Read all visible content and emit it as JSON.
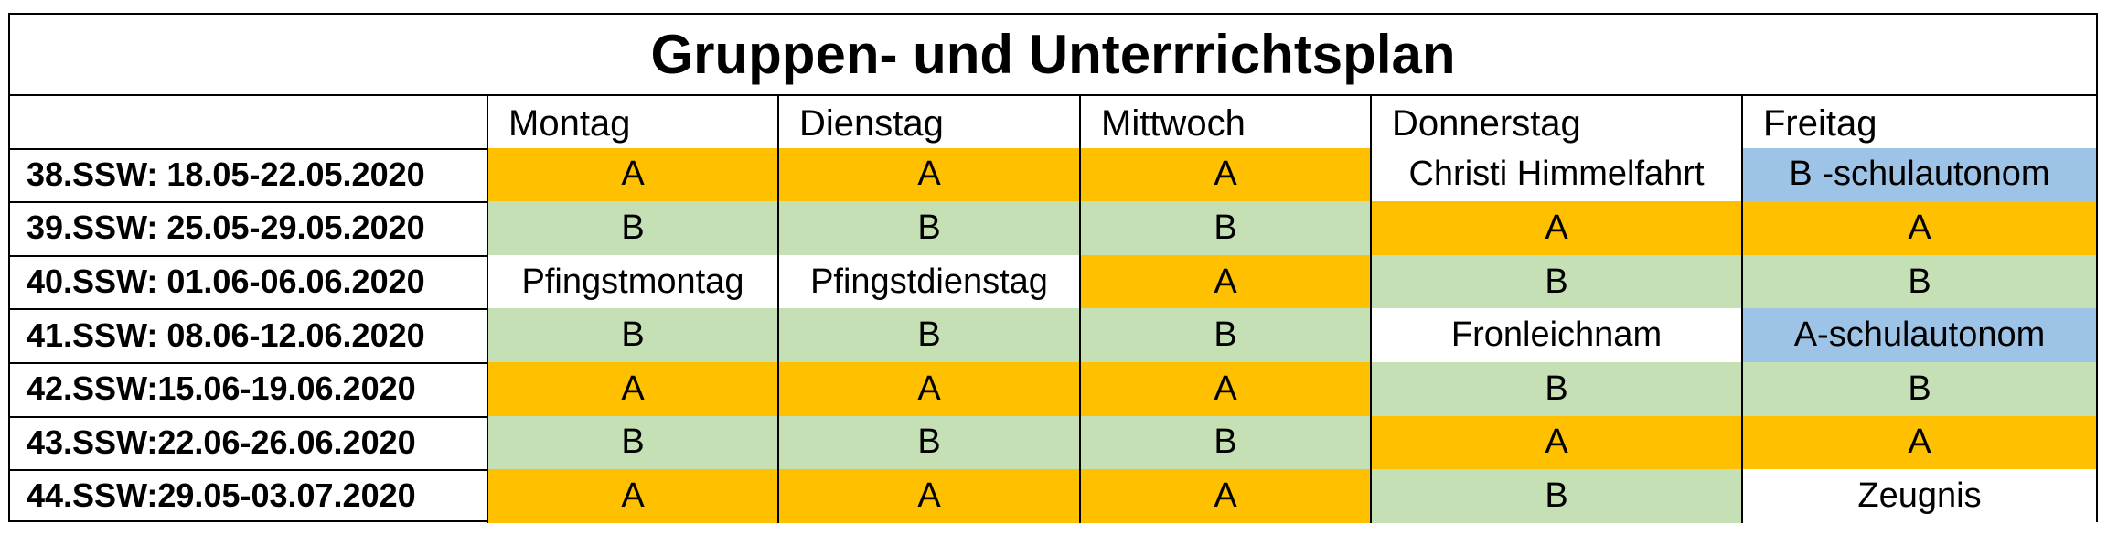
{
  "title": "Gruppen- und Unterrrichtsplan",
  "columns": [
    "",
    "Montag",
    "Dienstag",
    "Mittwoch",
    "Donnerstag",
    "Freitag"
  ],
  "rows": [
    {
      "week": "38.SSW: 18.05-22.05.2020",
      "cells": [
        {
          "text": "A",
          "style": "A"
        },
        {
          "text": "A",
          "style": "A"
        },
        {
          "text": "A",
          "style": "A"
        },
        {
          "text": "Christi Himmelfahrt",
          "style": "white"
        },
        {
          "text": "B -schulautonom",
          "style": "blue"
        }
      ]
    },
    {
      "week": "39.SSW: 25.05-29.05.2020",
      "cells": [
        {
          "text": "B",
          "style": "B"
        },
        {
          "text": "B",
          "style": "B"
        },
        {
          "text": "B",
          "style": "B"
        },
        {
          "text": "A",
          "style": "A"
        },
        {
          "text": "A",
          "style": "A"
        }
      ]
    },
    {
      "week": "40.SSW: 01.06-06.06.2020",
      "cells": [
        {
          "text": "Pfingstmontag",
          "style": "white"
        },
        {
          "text": "Pfingstdienstag",
          "style": "white"
        },
        {
          "text": "A",
          "style": "A"
        },
        {
          "text": "B",
          "style": "B"
        },
        {
          "text": "B",
          "style": "B"
        }
      ]
    },
    {
      "week": "41.SSW: 08.06-12.06.2020",
      "cells": [
        {
          "text": "B",
          "style": "B"
        },
        {
          "text": "B",
          "style": "B"
        },
        {
          "text": "B",
          "style": "B"
        },
        {
          "text": "Fronleichnam",
          "style": "white"
        },
        {
          "text": "A-schulautonom",
          "style": "blue"
        }
      ]
    },
    {
      "week": "42.SSW:15.06-19.06.2020",
      "cells": [
        {
          "text": "A",
          "style": "A"
        },
        {
          "text": "A",
          "style": "A"
        },
        {
          "text": "A",
          "style": "A"
        },
        {
          "text": "B",
          "style": "B"
        },
        {
          "text": "B",
          "style": "B"
        }
      ]
    },
    {
      "week": "43.SSW:22.06-26.06.2020",
      "cells": [
        {
          "text": "B",
          "style": "B"
        },
        {
          "text": "B",
          "style": "B"
        },
        {
          "text": "B",
          "style": "B"
        },
        {
          "text": "A",
          "style": "A"
        },
        {
          "text": "A",
          "style": "A"
        }
      ]
    },
    {
      "week": "44.SSW:29.05-03.07.2020",
      "cells": [
        {
          "text": "A",
          "style": "A"
        },
        {
          "text": "A",
          "style": "A"
        },
        {
          "text": "A",
          "style": "A"
        },
        {
          "text": "B",
          "style": "B"
        },
        {
          "text": "Zeugnis",
          "style": "white"
        }
      ]
    }
  ],
  "colors": {
    "group_a": "#ffc000",
    "group_b": "#c5e0b4",
    "autonomous": "#9dc3e6"
  }
}
